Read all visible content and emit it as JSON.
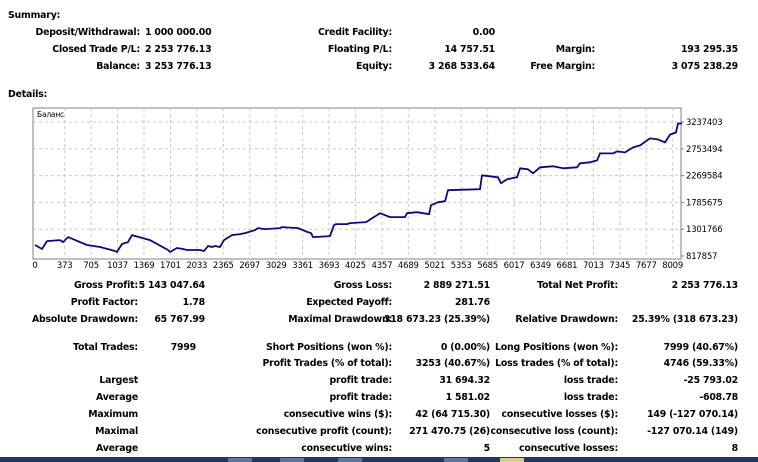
{
  "summary": {
    "title": "Summary:",
    "rows": [
      [
        {
          "label": "Deposit/Withdrawal:",
          "value": "1 000 000.00"
        },
        {
          "label": "Credit Facility:",
          "value": "0.00"
        },
        {
          "label": "",
          "value": ""
        }
      ],
      [
        {
          "label": "Closed Trade P/L:",
          "value": "2 253 776.13"
        },
        {
          "label": "Floating P/L:",
          "value": "14 757.51"
        },
        {
          "label": "Margin:",
          "value": "193 295.35"
        }
      ],
      [
        {
          "label": "Balance:",
          "value": "3 253 776.13"
        },
        {
          "label": "Equity:",
          "value": "3 268 533.64"
        },
        {
          "label": "Free Margin:",
          "value": "3 075 238.29"
        }
      ]
    ]
  },
  "details": {
    "title": "Details:",
    "rows": [
      [
        "Gross Profit:",
        "5 143 047.64",
        "Gross Loss:",
        "2 889 271.51",
        "Total Net Profit:",
        "2 253 776.13"
      ],
      [
        "Profit Factor:",
        "1.78",
        "Expected Payoff:",
        "281.76",
        "",
        ""
      ],
      [
        "Absolute Drawdown:",
        "65 767.99",
        "Maximal Drawdown:",
        "318 673.23 (25.39%)",
        "Relative Drawdown:",
        "25.39% (318 673.23)"
      ],
      [
        "Total Trades:",
        "7999",
        "Short Positions (won %):",
        "0 (0.00%)",
        "Long Positions (won %):",
        "7999 (40.67%)"
      ],
      [
        "",
        "",
        "Profit Trades (% of total):",
        "3253 (40.67%)",
        "Loss trades (% of total):",
        "4746 (59.33%)"
      ],
      [
        "Largest",
        "",
        "profit trade:",
        "31 694.32",
        "loss trade:",
        "-25 793.02"
      ],
      [
        "Average",
        "",
        "profit trade:",
        "1 581.02",
        "loss trade:",
        "-608.78"
      ],
      [
        "Maximum",
        "",
        "consecutive wins ($):",
        "42 (64 715.30)",
        "consecutive losses ($):",
        "149 (-127 070.14)"
      ],
      [
        "Maximal",
        "",
        "consecutive profit (count):",
        "271 470.75 (26)",
        "consecutive loss (count):",
        "-127 070.14 (149)"
      ],
      [
        "Average",
        "",
        "consecutive wins:",
        "5",
        "consecutive losses:",
        "8"
      ]
    ]
  },
  "chart_data": {
    "type": "line",
    "title": "Баланс",
    "xlabel": "",
    "ylabel": "",
    "xlim": [
      0,
      8009
    ],
    "ylim": [
      817857,
      3237403
    ],
    "x_ticks": [
      0,
      373,
      705,
      1037,
      1369,
      1701,
      2033,
      2365,
      2697,
      3029,
      3361,
      3693,
      4025,
      4357,
      4689,
      5021,
      5353,
      5685,
      6017,
      6349,
      6681,
      7013,
      7345,
      7677,
      8009
    ],
    "y_ticks": [
      817857,
      1301766,
      1785675,
      2269584,
      2753494,
      3237403
    ],
    "grid": true,
    "line_color": "#0a0a80",
    "series": [
      {
        "name": "Баланс",
        "points": [
          [
            0,
            1015700
          ],
          [
            88,
            943800
          ],
          [
            151,
            1087700
          ],
          [
            314,
            1105700
          ],
          [
            352,
            1069700
          ],
          [
            414,
            1159700
          ],
          [
            653,
            1015700
          ],
          [
            816,
            979800
          ],
          [
            1005,
            907800
          ],
          [
            1030,
            889800
          ],
          [
            1093,
            1033700
          ],
          [
            1168,
            1069700
          ],
          [
            1218,
            1195600
          ],
          [
            1444,
            1105700
          ],
          [
            1670,
            925800
          ],
          [
            1696,
            889800
          ],
          [
            1783,
            961800
          ],
          [
            1859,
            943800
          ],
          [
            1909,
            925800
          ],
          [
            2072,
            925800
          ],
          [
            2123,
            907800
          ],
          [
            2173,
            997800
          ],
          [
            2223,
            979800
          ],
          [
            2261,
            997800
          ],
          [
            2324,
            979800
          ],
          [
            2374,
            1105700
          ],
          [
            2474,
            1195600
          ],
          [
            2575,
            1213600
          ],
          [
            2638,
            1231600
          ],
          [
            2763,
            1285600
          ],
          [
            2801,
            1321600
          ],
          [
            2889,
            1303600
          ],
          [
            3077,
            1321600
          ],
          [
            3102,
            1339600
          ],
          [
            3303,
            1321600
          ],
          [
            3391,
            1267600
          ],
          [
            3467,
            1231600
          ],
          [
            3492,
            1159700
          ],
          [
            3705,
            1177700
          ],
          [
            3755,
            1375600
          ],
          [
            3780,
            1393500
          ],
          [
            3919,
            1393500
          ],
          [
            3956,
            1411500
          ],
          [
            4157,
            1429500
          ],
          [
            4333,
            1591400
          ],
          [
            4459,
            1519500
          ],
          [
            4647,
            1519500
          ],
          [
            4672,
            1591400
          ],
          [
            4798,
            1609400
          ],
          [
            4949,
            1573400
          ],
          [
            4974,
            1735300
          ],
          [
            5062,
            1789300
          ],
          [
            5150,
            1807300
          ],
          [
            5187,
            2005200
          ],
          [
            5589,
            2023200
          ],
          [
            5614,
            2275000
          ],
          [
            5815,
            2239100
          ],
          [
            5853,
            2131100
          ],
          [
            5928,
            2203100
          ],
          [
            6054,
            2239100
          ],
          [
            6092,
            2400950
          ],
          [
            6192,
            2383000
          ],
          [
            6255,
            2311000
          ],
          [
            6343,
            2419000
          ],
          [
            6506,
            2436900
          ],
          [
            6632,
            2401000
          ],
          [
            6808,
            2419000
          ],
          [
            6845,
            2490900
          ],
          [
            6971,
            2508900
          ],
          [
            7059,
            2544900
          ],
          [
            7096,
            2670800
          ],
          [
            7260,
            2670800
          ],
          [
            7310,
            2706800
          ],
          [
            7410,
            2688800
          ],
          [
            7511,
            2778800
          ],
          [
            7599,
            2814700
          ],
          [
            7724,
            2940700
          ],
          [
            7825,
            2922700
          ],
          [
            7913,
            2868700
          ],
          [
            7976,
            3012600
          ],
          [
            8051,
            3048600
          ],
          [
            8076,
            3210500
          ],
          [
            8126,
            3210500
          ]
        ]
      }
    ]
  }
}
